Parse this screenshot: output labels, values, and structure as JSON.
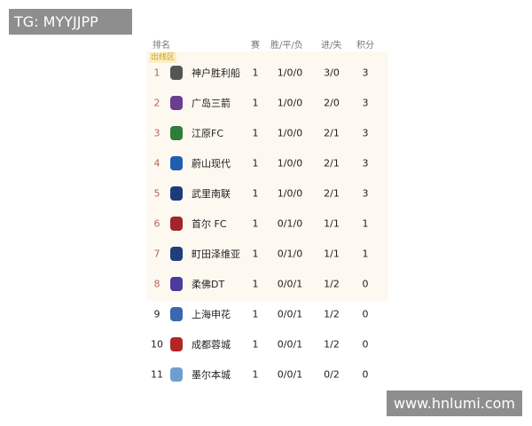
{
  "watermarks": {
    "top_left": "TG: MYYJJPP",
    "bottom_right": "www.hnlumi.com"
  },
  "headers": {
    "rank": "排名",
    "played": "赛",
    "wdl": "胜/平/负",
    "goals": "进/失",
    "points": "积分"
  },
  "zone_label": "出线区",
  "colors": {
    "zone_bg": "#fdf9f1",
    "zone_rank": "#b5655a"
  },
  "rows": [
    {
      "rank": "1",
      "team": "神户胜利船",
      "played": "1",
      "wdl": "1/0/0",
      "goals": "3/0",
      "points": "3",
      "logo_color": "#555555"
    },
    {
      "rank": "2",
      "team": "广岛三箭",
      "played": "1",
      "wdl": "1/0/0",
      "goals": "2/0",
      "points": "3",
      "logo_color": "#6a3d91"
    },
    {
      "rank": "3",
      "team": "江原FC",
      "played": "1",
      "wdl": "1/0/0",
      "goals": "2/1",
      "points": "3",
      "logo_color": "#2e7d3a"
    },
    {
      "rank": "4",
      "team": "蔚山现代",
      "played": "1",
      "wdl": "1/0/0",
      "goals": "2/1",
      "points": "3",
      "logo_color": "#1f5fae"
    },
    {
      "rank": "5",
      "team": "武里南联",
      "played": "1",
      "wdl": "1/0/0",
      "goals": "2/1",
      "points": "3",
      "logo_color": "#1d3b7a"
    },
    {
      "rank": "6",
      "team": "首尔 FC",
      "played": "1",
      "wdl": "0/1/0",
      "goals": "1/1",
      "points": "1",
      "logo_color": "#a3242a"
    },
    {
      "rank": "7",
      "team": "町田泽维亚",
      "played": "1",
      "wdl": "0/1/0",
      "goals": "1/1",
      "points": "1",
      "logo_color": "#1e3f7a"
    },
    {
      "rank": "8",
      "team": "柔佛DT",
      "played": "1",
      "wdl": "0/0/1",
      "goals": "1/2",
      "points": "0",
      "logo_color": "#4b3b9a"
    },
    {
      "rank": "9",
      "team": "上海申花",
      "played": "1",
      "wdl": "0/0/1",
      "goals": "1/2",
      "points": "0",
      "logo_color": "#3a67b1"
    },
    {
      "rank": "10",
      "team": "成都蓉城",
      "played": "1",
      "wdl": "0/0/1",
      "goals": "1/2",
      "points": "0",
      "logo_color": "#b32626"
    },
    {
      "rank": "11",
      "team": "墨尔本城",
      "played": "1",
      "wdl": "0/0/1",
      "goals": "0/2",
      "points": "0",
      "logo_color": "#6d9fd1"
    }
  ]
}
